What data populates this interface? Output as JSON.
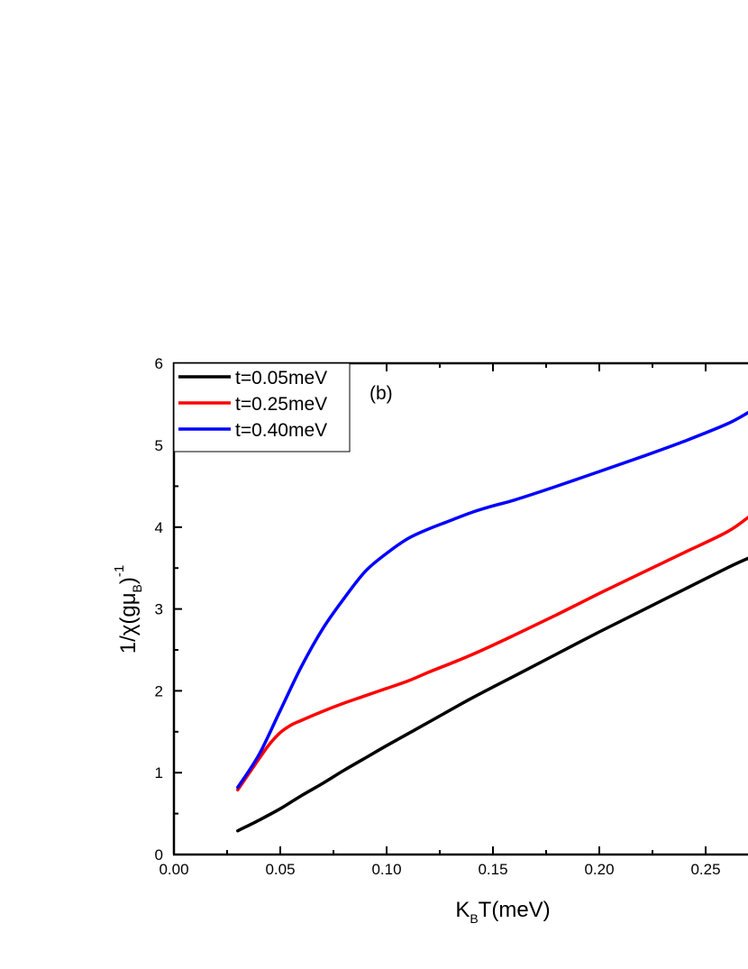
{
  "chart_data": {
    "type": "line",
    "panel_label": "(b)",
    "xlabel": {
      "main": "K",
      "sub": "B",
      "rest": "T(meV)"
    },
    "ylabel": {
      "pre": "1/χ(gμ",
      "sub": "B",
      "post": ")",
      "sup": "-1"
    },
    "xlim": [
      0.0,
      0.27
    ],
    "ylim": [
      0,
      6
    ],
    "x_ticks": [
      "0.00",
      "0.05",
      "0.10",
      "0.15",
      "0.20",
      "0.25"
    ],
    "y_ticks": [
      "0",
      "1",
      "2",
      "3",
      "4",
      "5",
      "6"
    ],
    "legend_position": "top-left",
    "grid": false,
    "series": [
      {
        "name": "t=0.05meV",
        "color": "#000000",
        "x": [
          0.03,
          0.04,
          0.05,
          0.06,
          0.07,
          0.08,
          0.09,
          0.1,
          0.12,
          0.14,
          0.16,
          0.18,
          0.2,
          0.22,
          0.24,
          0.26,
          0.27
        ],
        "y": [
          0.29,
          0.42,
          0.56,
          0.72,
          0.87,
          1.03,
          1.18,
          1.33,
          1.62,
          1.91,
          2.18,
          2.45,
          2.72,
          2.98,
          3.24,
          3.5,
          3.62
        ]
      },
      {
        "name": "t=0.25meV",
        "color": "#ff0000",
        "x": [
          0.03,
          0.035,
          0.04,
          0.045,
          0.05,
          0.055,
          0.06,
          0.07,
          0.08,
          0.09,
          0.1,
          0.11,
          0.12,
          0.14,
          0.16,
          0.18,
          0.2,
          0.22,
          0.24,
          0.26,
          0.27
        ],
        "y": [
          0.79,
          0.98,
          1.17,
          1.35,
          1.49,
          1.58,
          1.64,
          1.75,
          1.85,
          1.94,
          2.03,
          2.12,
          2.23,
          2.44,
          2.68,
          2.93,
          3.19,
          3.44,
          3.69,
          3.94,
          4.12
        ]
      },
      {
        "name": "t=0.40meV",
        "color": "#0000ff",
        "x": [
          0.03,
          0.04,
          0.05,
          0.06,
          0.07,
          0.08,
          0.09,
          0.1,
          0.11,
          0.12,
          0.13,
          0.14,
          0.15,
          0.16,
          0.18,
          0.2,
          0.22,
          0.24,
          0.26,
          0.27
        ],
        "y": [
          0.82,
          1.22,
          1.76,
          2.3,
          2.76,
          3.13,
          3.46,
          3.68,
          3.86,
          3.98,
          4.08,
          4.18,
          4.26,
          4.33,
          4.5,
          4.68,
          4.86,
          5.05,
          5.26,
          5.4
        ]
      }
    ]
  }
}
